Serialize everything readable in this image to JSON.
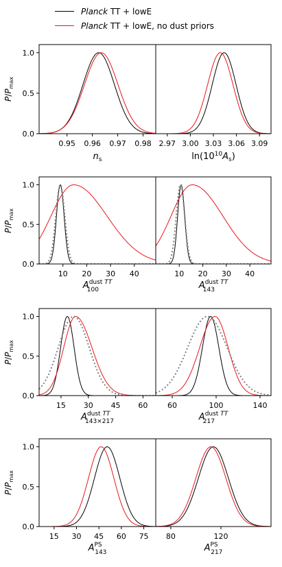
{
  "legend": [
    {
      "name": "Planck TT + lowE",
      "italic": "Planck",
      "rest": " TT + lowE",
      "color": "#000000"
    },
    {
      "name": "Planck TT + lowE, no dust priors",
      "italic": "Planck",
      "rest": " TT + lowE, no dust priors",
      "color": "#e8141b"
    }
  ],
  "colors": {
    "black": "#000000",
    "red": "#e8141b",
    "gray_dotted": "#808080"
  },
  "chart_data": [
    {
      "type": "line",
      "row": 1,
      "col": 1,
      "xlabel": "n_s",
      "ylabel": "P/P_max",
      "xlim": [
        0.939,
        0.985
      ],
      "ylim": [
        0,
        1.1
      ],
      "xticks": [
        0.95,
        0.96,
        0.97,
        0.98
      ],
      "xticklabels": [
        "0.95",
        "0.96",
        "0.97",
        "0.98"
      ],
      "yticks": [
        0.0,
        0.5,
        1.0
      ],
      "yticklabels": [
        "0.0",
        "0.5",
        "1.0"
      ],
      "series": [
        {
          "name": "Planck TT + lowE",
          "color": "#000000",
          "style": "solid",
          "peak": 0.9625,
          "sigma": 0.0062
        },
        {
          "name": "Planck TT + lowE, no dust priors",
          "color": "#e8141b",
          "style": "solid",
          "peak": 0.9635,
          "sigma": 0.0066
        }
      ]
    },
    {
      "type": "line",
      "row": 1,
      "col": 2,
      "xlabel": "ln(10^10 A_s)",
      "xlim": [
        2.955,
        3.105
      ],
      "ylim": [
        0,
        1.1
      ],
      "xticks": [
        2.97,
        3.0,
        3.03,
        3.06,
        3.09
      ],
      "xticklabels": [
        "2.97",
        "3.00",
        "3.03",
        "3.06",
        "3.09"
      ],
      "series": [
        {
          "name": "Planck TT + lowE",
          "color": "#000000",
          "style": "solid",
          "peak": 3.044,
          "sigma": 0.0155
        },
        {
          "name": "Planck TT + lowE, no dust priors",
          "color": "#e8141b",
          "style": "solid",
          "peak": 3.039,
          "sigma": 0.0165
        }
      ]
    },
    {
      "type": "line",
      "row": 2,
      "col": 1,
      "xlabel": "A_100^{dust TT}",
      "ylabel": "P/P_max",
      "xlim": [
        0,
        49
      ],
      "ylim": [
        0,
        1.1
      ],
      "xticks": [
        10,
        20,
        30,
        40
      ],
      "xticklabels": [
        "10",
        "20",
        "30",
        "40"
      ],
      "yticks": [
        0.0,
        0.5,
        1.0
      ],
      "yticklabels": [
        "0.0",
        "0.5",
        "1.0"
      ],
      "series": [
        {
          "name": "Planck TT + lowE",
          "color": "#000000",
          "style": "solid",
          "peak": 8.9,
          "sigma": 1.6
        },
        {
          "name": "prior",
          "color": "#808080",
          "style": "dotted",
          "peak": 8.9,
          "sigma": 1.9
        },
        {
          "name": "Planck TT + lowE, no dust priors",
          "color": "#e8141b",
          "style": "solid",
          "peak": 14.5,
          "sigma_left": 9.5,
          "sigma_right": 14.0
        }
      ]
    },
    {
      "type": "line",
      "row": 2,
      "col": 2,
      "xlabel": "A_143^{dust TT}",
      "xlim": [
        0,
        49
      ],
      "ylim": [
        0,
        1.1
      ],
      "xticks": [
        10,
        20,
        30,
        40
      ],
      "xticklabels": [
        "10",
        "20",
        "30",
        "40"
      ],
      "series": [
        {
          "name": "Planck TT + lowE",
          "color": "#000000",
          "style": "solid",
          "peak": 10.8,
          "sigma": 1.5
        },
        {
          "name": "prior",
          "color": "#808080",
          "style": "dotted",
          "peak": 10.5,
          "sigma": 1.8
        },
        {
          "name": "Planck TT + lowE, no dust priors",
          "color": "#e8141b",
          "style": "solid",
          "peak": 15.5,
          "sigma_left": 9.0,
          "sigma_right": 13.0
        }
      ]
    },
    {
      "type": "line",
      "row": 3,
      "col": 1,
      "xlabel": "A_{143x217}^{dust TT}",
      "ylabel": "P/P_max",
      "xlim": [
        3,
        67
      ],
      "ylim": [
        0,
        1.1
      ],
      "xticks": [
        15,
        30,
        45,
        60
      ],
      "xticklabels": [
        "15",
        "30",
        "45",
        "60"
      ],
      "yticks": [
        0.0,
        0.5,
        1.0
      ],
      "yticklabels": [
        "0.0",
        "0.5",
        "1.0"
      ],
      "series": [
        {
          "name": "Planck TT + lowE",
          "color": "#000000",
          "style": "solid",
          "peak": 18.5,
          "sigma": 3.7
        },
        {
          "name": "Planck TT + lowE, no dust priors",
          "color": "#e8141b",
          "style": "solid",
          "peak": 23,
          "sigma_left": 6.5,
          "sigma_right": 9.0
        },
        {
          "name": "prior",
          "color": "#808080",
          "style": "dotted",
          "peak": 22,
          "sigma": 8.5
        }
      ]
    },
    {
      "type": "line",
      "row": 3,
      "col": 2,
      "xlabel": "A_217^{dust TT}",
      "xlim": [
        45,
        150
      ],
      "ylim": [
        0,
        1.1
      ],
      "xticks": [
        60,
        100,
        140
      ],
      "xticklabels": [
        "60",
        "100",
        "140"
      ],
      "series": [
        {
          "name": "Planck TT + lowE",
          "color": "#000000",
          "style": "solid",
          "peak": 95,
          "sigma": 7.5
        },
        {
          "name": "Planck TT + lowE, no dust priors",
          "color": "#e8141b",
          "style": "solid",
          "peak": 99,
          "sigma_left": 14,
          "sigma_right": 12
        },
        {
          "name": "prior",
          "color": "#808080",
          "style": "dotted",
          "peak": 92,
          "sigma": 18
        }
      ]
    },
    {
      "type": "line",
      "row": 4,
      "col": 1,
      "xlabel": "A_143^PS",
      "ylabel": "P/P_max",
      "xlim": [
        5,
        83
      ],
      "ylim": [
        0,
        1.1
      ],
      "xticks": [
        15,
        30,
        45,
        60,
        75
      ],
      "xticklabels": [
        "15",
        "30",
        "45",
        "60",
        "75"
      ],
      "yticks": [
        0.0,
        0.5,
        1.0
      ],
      "yticklabels": [
        "0.0",
        "0.5",
        "1.0"
      ],
      "series": [
        {
          "name": "Planck TT + lowE",
          "color": "#000000",
          "style": "solid",
          "peak": 50.5,
          "sigma": 8.5
        },
        {
          "name": "Planck TT + lowE, no dust priors",
          "color": "#e8141b",
          "style": "solid",
          "peak": 46.5,
          "sigma": 8.5
        }
      ]
    },
    {
      "type": "line",
      "row": 4,
      "col": 2,
      "xlabel": "A_217^PS",
      "xlim": [
        68,
        160
      ],
      "ylim": [
        0,
        1.1
      ],
      "xticks": [
        80,
        120
      ],
      "xticklabels": [
        "80",
        "120"
      ],
      "series": [
        {
          "name": "Planck TT + lowE",
          "color": "#000000",
          "style": "solid",
          "peak": 114,
          "sigma": 12
        },
        {
          "name": "Planck TT + lowE, no dust priors",
          "color": "#e8141b",
          "style": "solid",
          "peak": 112,
          "sigma": 12
        }
      ]
    }
  ]
}
